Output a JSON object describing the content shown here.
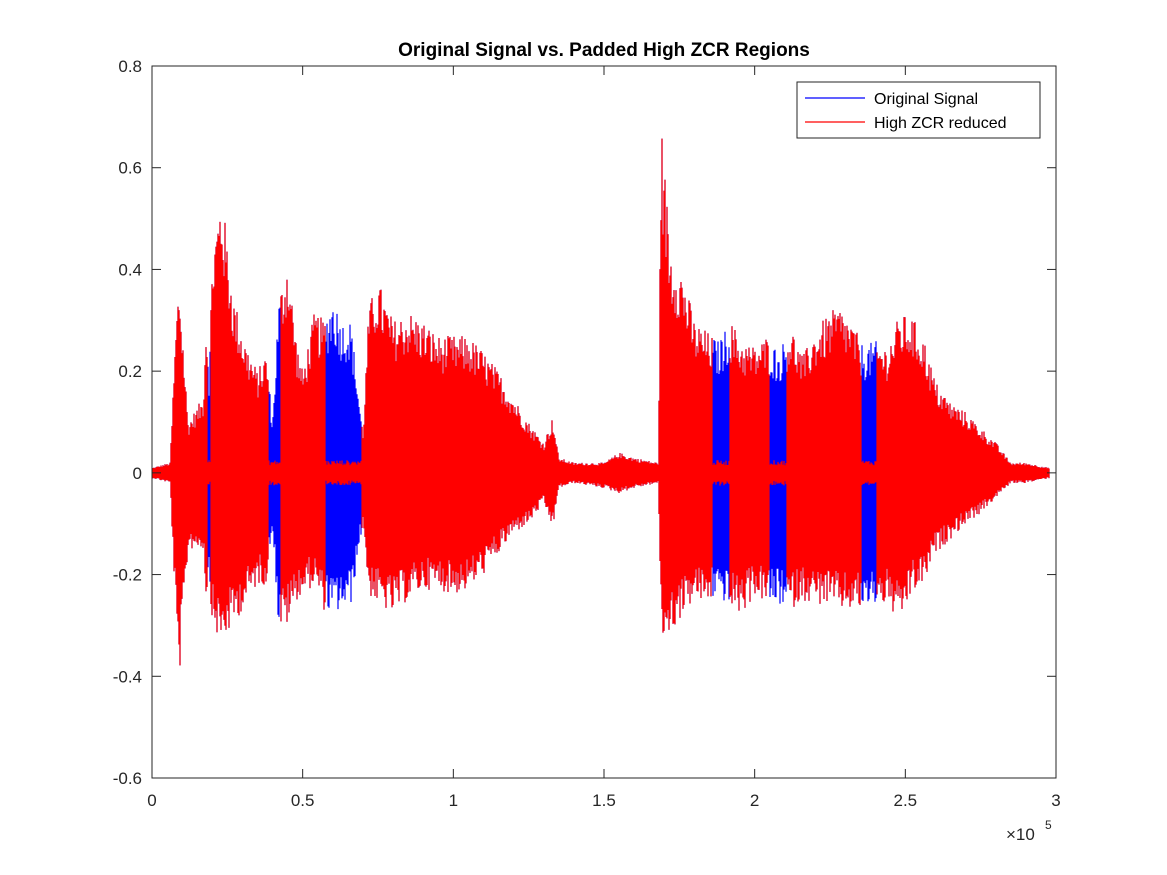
{
  "chart_data": {
    "type": "line",
    "title": "Original Signal vs. Padded High ZCR Regions",
    "xlabel": "",
    "ylabel": "",
    "xlim": [
      0,
      300000
    ],
    "ylim": [
      -0.6,
      0.8
    ],
    "x_ticks": [
      0,
      50000,
      100000,
      150000,
      200000,
      250000,
      300000
    ],
    "x_tick_labels": [
      "0",
      "0.5",
      "1",
      "1.5",
      "2",
      "2.5",
      "3"
    ],
    "x_exponent_label": "×10",
    "x_exponent_power": "5",
    "y_ticks": [
      0.8,
      0.6,
      0.4,
      0.2,
      0,
      -0.2,
      -0.4,
      -0.6
    ],
    "y_tick_labels": [
      "0.8",
      "0.6",
      "0.4",
      "0.2",
      "0",
      "-0.2",
      "-0.4",
      "-0.6"
    ],
    "grid": false,
    "legend": "top-right",
    "series": [
      {
        "name": "Original Signal",
        "color": "#0000ff",
        "envelope": {
          "x": [
            0,
            6000,
            8000,
            9000,
            12000,
            17000,
            18000,
            19000,
            20000,
            23000,
            27000,
            31000,
            35000,
            38000,
            40000,
            42000,
            45000,
            48000,
            50000,
            54000,
            57000,
            60000,
            63000,
            66000,
            70000,
            72000,
            75000,
            80000,
            85000,
            90000,
            95000,
            100000,
            105000,
            110000,
            115000,
            120000,
            125000,
            130000,
            133000,
            135000,
            140000,
            150000,
            155000,
            160000,
            168000,
            169000,
            172000,
            176000,
            180000,
            184000,
            188000,
            192000,
            196000,
            200000,
            204000,
            208000,
            212000,
            216000,
            220000,
            224000,
            228000,
            232000,
            236000,
            240000,
            244000,
            248000,
            252000,
            256000,
            260000,
            265000,
            270000,
            275000,
            280000,
            285000,
            290000,
            298000
          ],
          "upper": [
            0.01,
            0.02,
            0.3,
            0.39,
            0.1,
            0.15,
            0.32,
            0.2,
            0.44,
            0.56,
            0.35,
            0.26,
            0.2,
            0.24,
            0.1,
            0.34,
            0.43,
            0.26,
            0.2,
            0.32,
            0.3,
            0.35,
            0.3,
            0.3,
            0.08,
            0.33,
            0.38,
            0.3,
            0.32,
            0.3,
            0.27,
            0.27,
            0.27,
            0.24,
            0.2,
            0.15,
            0.1,
            0.06,
            0.11,
            0.03,
            0.02,
            0.02,
            0.04,
            0.03,
            0.02,
            0.69,
            0.45,
            0.4,
            0.3,
            0.28,
            0.26,
            0.3,
            0.26,
            0.25,
            0.27,
            0.24,
            0.29,
            0.23,
            0.28,
            0.31,
            0.33,
            0.3,
            0.25,
            0.26,
            0.25,
            0.31,
            0.31,
            0.27,
            0.18,
            0.14,
            0.12,
            0.09,
            0.06,
            0.02,
            0.02,
            0.01
          ],
          "lower": [
            -0.01,
            -0.02,
            -0.3,
            -0.41,
            -0.15,
            -0.15,
            -0.25,
            -0.2,
            -0.3,
            -0.34,
            -0.3,
            -0.26,
            -0.22,
            -0.22,
            -0.1,
            -0.31,
            -0.3,
            -0.25,
            -0.24,
            -0.22,
            -0.27,
            -0.28,
            -0.27,
            -0.26,
            -0.1,
            -0.24,
            -0.26,
            -0.28,
            -0.25,
            -0.23,
            -0.23,
            -0.24,
            -0.23,
            -0.2,
            -0.16,
            -0.12,
            -0.1,
            -0.06,
            -0.11,
            -0.03,
            -0.02,
            -0.03,
            -0.04,
            -0.03,
            -0.02,
            -0.33,
            -0.32,
            -0.28,
            -0.25,
            -0.26,
            -0.24,
            -0.27,
            -0.28,
            -0.24,
            -0.26,
            -0.26,
            -0.27,
            -0.25,
            -0.26,
            -0.26,
            -0.27,
            -0.27,
            -0.27,
            -0.26,
            -0.26,
            -0.3,
            -0.24,
            -0.22,
            -0.16,
            -0.13,
            -0.1,
            -0.08,
            -0.05,
            -0.02,
            -0.02,
            -0.01
          ]
        }
      },
      {
        "name": "High ZCR reduced",
        "color": "#ff0000",
        "reduced_ranges": [
          [
            18500,
            19500
          ],
          [
            38500,
            42500
          ],
          [
            57500,
            69500
          ],
          [
            186000,
            191500
          ],
          [
            205000,
            210500
          ],
          [
            235500,
            240500
          ]
        ],
        "reduced_amplitude": 0.025
      }
    ]
  }
}
